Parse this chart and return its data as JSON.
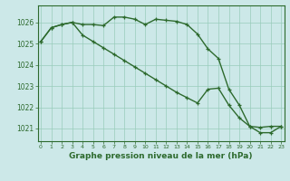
{
  "line1_x": [
    0,
    1,
    2,
    3,
    4,
    5,
    6,
    7,
    8,
    9,
    10,
    11,
    12,
    13,
    14,
    15,
    16,
    17,
    18,
    19,
    20,
    21,
    22,
    23
  ],
  "line1_y": [
    1025.1,
    1025.75,
    1025.9,
    1026.0,
    1025.9,
    1025.9,
    1025.85,
    1026.25,
    1026.25,
    1026.15,
    1025.9,
    1026.15,
    1026.1,
    1026.05,
    1025.9,
    1025.45,
    1024.75,
    1024.3,
    1022.85,
    1022.1,
    1021.1,
    1021.05,
    1021.1,
    1021.1
  ],
  "line2_x": [
    0,
    1,
    2,
    3,
    4,
    5,
    6,
    7,
    8,
    9,
    10,
    11,
    12,
    13,
    14,
    15,
    16,
    17,
    18,
    19,
    20,
    21,
    22,
    23
  ],
  "line2_y": [
    1025.1,
    1025.75,
    1025.9,
    1026.0,
    1025.4,
    1025.1,
    1024.8,
    1024.5,
    1024.2,
    1023.9,
    1023.6,
    1023.3,
    1023.0,
    1022.7,
    1022.45,
    1022.2,
    1022.85,
    1022.9,
    1022.1,
    1021.5,
    1021.1,
    1020.8,
    1020.8,
    1021.1
  ],
  "line_color": "#2d6a2d",
  "bg_color": "#cce8e8",
  "grid_color": "#99ccbb",
  "xlabel": "Graphe pression niveau de la mer (hPa)",
  "ylim": [
    1020.4,
    1026.8
  ],
  "yticks": [
    1021,
    1022,
    1023,
    1024,
    1025,
    1026
  ],
  "xticks": [
    0,
    1,
    2,
    3,
    4,
    5,
    6,
    7,
    8,
    9,
    10,
    11,
    12,
    13,
    14,
    15,
    16,
    17,
    18,
    19,
    20,
    21,
    22,
    23
  ],
  "marker": "+",
  "marker_size": 3.5,
  "line_width": 1.0
}
